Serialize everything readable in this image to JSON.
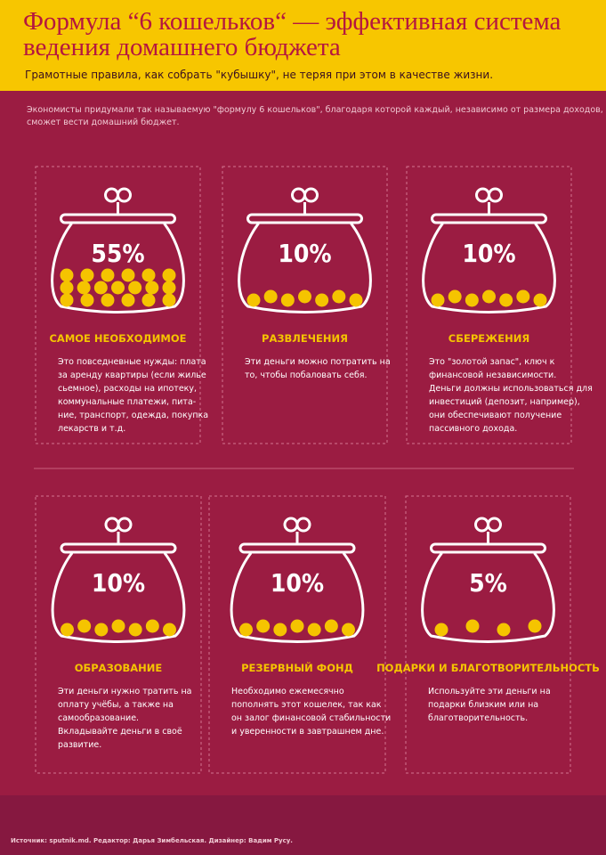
{
  "header": {
    "title": [
      "Формула “6 кошельков“ — эффективная система",
      "ведения домашнего бюджета"
    ],
    "subtitle": "Грамотные правила, как собрать \"кубышку\", не теряя при этом в качестве жизни."
  },
  "intro": [
    "Экономисты придумали так называемую \"формулу 6 кошельков\",  благодаря которой каждый,  независимо от размера доходов,",
    "сможет вести домашний бюджет."
  ],
  "cards": [
    {
      "percent": "55%",
      "title": "САМОЕ НЕОБХОДИМОЕ",
      "text": [
        "Это повседневные нужды: плата",
        "за аренду квартиры (если жилье",
        "сьемное),  расходы на ипотеку,",
        "коммунальные платежи,  пита-",
        "ние, транспорт, одежда, покупка",
        "лекарств и т.д."
      ]
    },
    {
      "percent": "10%",
      "title": "РАЗВЛЕЧЕНИЯ",
      "text": [
        "Эти деньги можно потратить на",
        "то,  чтобы побаловать себя."
      ]
    },
    {
      "percent": "10%",
      "title": "СБЕРЕЖЕНИЯ",
      "text": [
        "Это \"золотой запас\",  ключ к",
        "финансовой независимости.",
        "Деньги должны использоваться для",
        "инвестиций (депозит, например),",
        "они обеспечивают получение",
        "пассивного дохода."
      ]
    },
    {
      "percent": "10%",
      "title": "ОБРАЗОВАНИЕ",
      "text": [
        "Эти деньги нужно тратить на",
        "оплату учёбы, а также на",
        "самообразование.",
        "Вкладывайте деньги в своё",
        "развитие."
      ]
    },
    {
      "percent": "10%",
      "title": "РЕЗЕРВНЫЙ ФОНД",
      "text": [
        "Необходимо ежемесячно",
        "пополнять этот кошелек,  так как",
        "он залог финансовой стабильности",
        "и уверенности в завтрашнем дне."
      ]
    },
    {
      "percent": "5%",
      "title": "ПОДАРКИ И БЛАГОТВОРИТЕЛЬНОСТЬ",
      "text": [
        "Используйте эти деньги на",
        "подарки близким или на",
        "благотворительность."
      ]
    }
  ],
  "footer": "Источник: sputnik.md. Редактор: Дарья Зимбельская. Дизайнер: Вадим Русу."
}
